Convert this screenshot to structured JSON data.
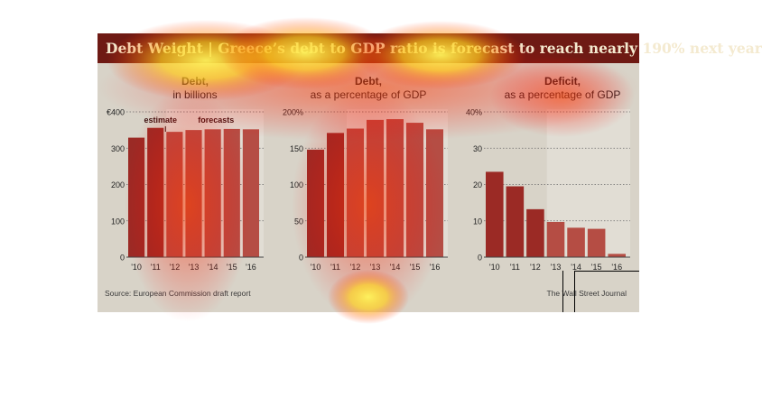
{
  "title": "Debt Weight | Greece’s debt to GDP ratio is forecast to reach nearly 190% next year",
  "source": "Source: European Commission draft report",
  "credit": "The Wall Street Journal",
  "colors": {
    "background": "#d8d3c8",
    "title_bar": "#6e1a14",
    "bar_dark": "#9b2a25",
    "bar_forecast": "#b54d44",
    "shade": "#e9e6df"
  },
  "chart_data": [
    {
      "type": "bar",
      "title": "Debt,",
      "subtitle": "in billions",
      "categories": [
        "'10",
        "'11",
        "'12",
        "'13",
        "'14",
        "'15",
        "'16"
      ],
      "values": [
        329,
        356,
        345,
        350,
        352,
        353,
        352
      ],
      "ylim": [
        0,
        400
      ],
      "yticks": [
        0,
        100,
        200,
        300,
        400
      ],
      "ytick_labels": [
        "0",
        "100",
        "200",
        "300",
        "€400"
      ],
      "annotations": [
        "estimate",
        "forecasts"
      ],
      "shaded_from_index": 2
    },
    {
      "type": "bar",
      "title": "Debt,",
      "subtitle": "as a percentage of GDP",
      "categories": [
        "'10",
        "'11",
        "'12",
        "'13",
        "'14",
        "'15",
        "'16"
      ],
      "values": [
        148,
        171,
        177,
        189,
        190,
        185,
        176
      ],
      "ylim": [
        0,
        200
      ],
      "yticks": [
        0,
        50,
        100,
        150,
        200
      ],
      "ytick_labels": [
        "0",
        "50",
        "100",
        "150",
        "200%"
      ],
      "annotations": [],
      "shaded_from_index": 2
    },
    {
      "type": "bar",
      "title": "Deficit,",
      "subtitle": "as a percentage of GDP",
      "categories": [
        "'10",
        "'11",
        "'12",
        "'13",
        "'14",
        "'15",
        "'16"
      ],
      "values": [
        23.5,
        19.5,
        13.2,
        9.7,
        8.1,
        7.8,
        0.9
      ],
      "ylim": [
        0,
        40
      ],
      "yticks": [
        0,
        10,
        20,
        30,
        40
      ],
      "ytick_labels": [
        "0",
        "10",
        "20",
        "30",
        "40%"
      ],
      "annotations": [],
      "shaded_from_index": 3
    }
  ]
}
